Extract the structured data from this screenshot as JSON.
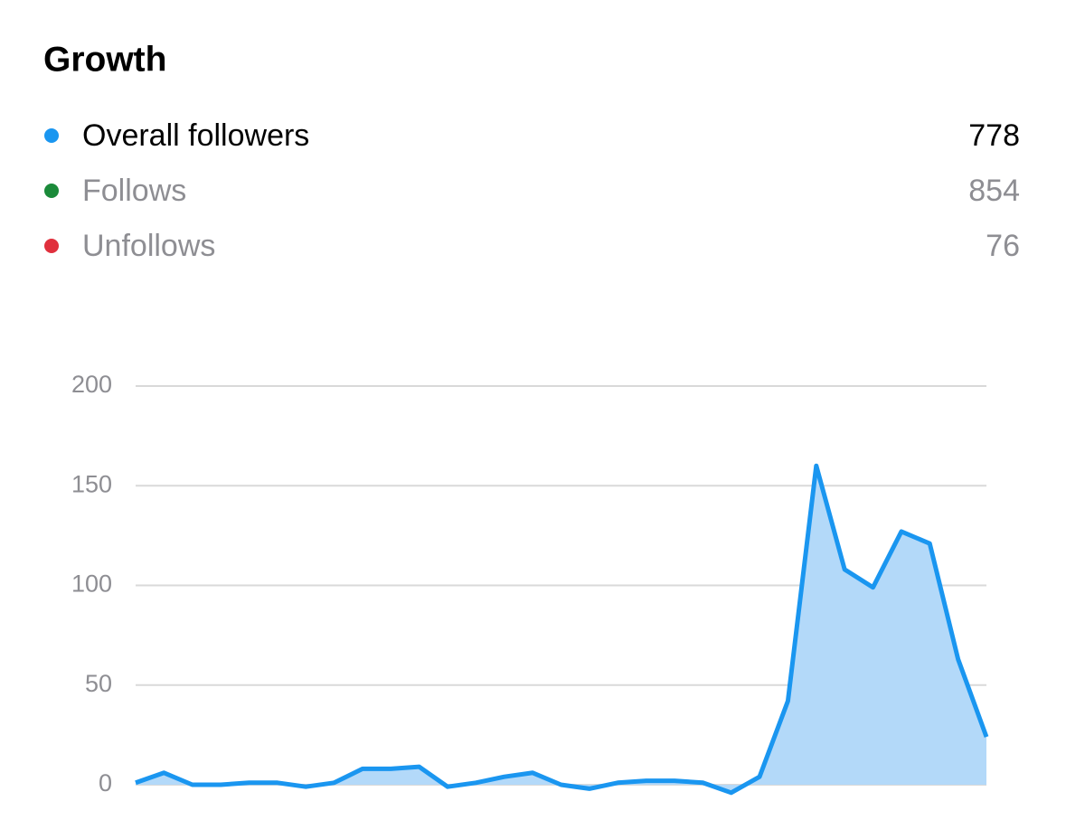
{
  "header": {
    "title": "Growth"
  },
  "legend": [
    {
      "label": "Overall followers",
      "color": "#1a96f0",
      "value": 778,
      "active": true
    },
    {
      "label": "Follows",
      "color": "#1b8a3a",
      "value": 854,
      "active": false
    },
    {
      "label": "Unfollows",
      "color": "#e0303d",
      "value": 76,
      "active": false
    }
  ],
  "chart_data": {
    "type": "area",
    "categories": [
      null,
      null,
      null,
      null,
      null,
      null,
      null,
      null,
      null,
      null,
      null,
      null,
      null,
      null,
      null,
      null,
      null,
      null,
      null,
      null,
      null,
      null,
      null,
      null,
      null,
      null,
      null,
      null,
      null,
      null,
      null
    ],
    "series": [
      {
        "color": "#1a96f0",
        "fill": "#b3d9f9",
        "values": [
          1,
          6,
          0,
          0,
          1,
          1,
          -1,
          1,
          8,
          8,
          9,
          -1,
          1,
          4,
          6,
          0,
          -2,
          1,
          2,
          2,
          1,
          -4,
          4,
          42,
          160,
          108,
          99,
          127,
          121,
          63,
          24
        ]
      }
    ],
    "ylim": [
      0,
      200
    ],
    "yticks": [
      0,
      50,
      100,
      150,
      200
    ],
    "grid": true
  }
}
